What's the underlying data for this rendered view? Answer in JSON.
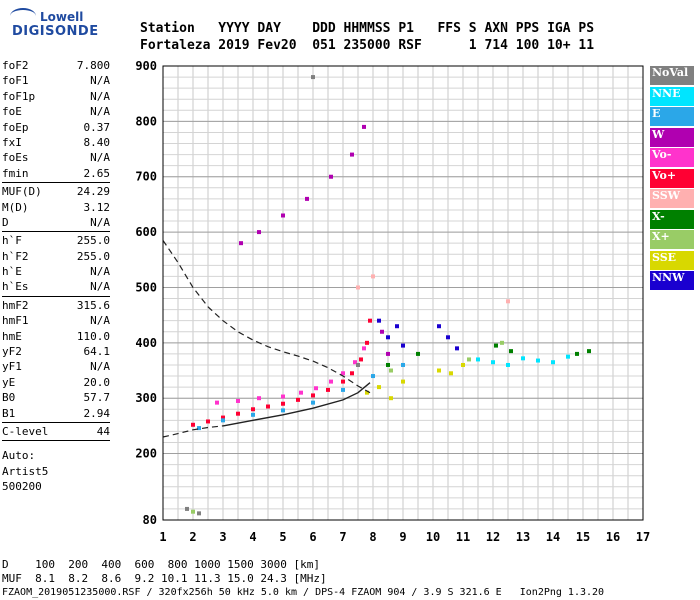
{
  "logo": {
    "line1": "Lowell",
    "line2": "DIGISONDE"
  },
  "header": {
    "row1": [
      "Station",
      "YYYY",
      "DAY",
      "DDD",
      "HHMMSS",
      "P1",
      "FFS",
      "S",
      "AXN",
      "PPS",
      "IGA",
      "PS"
    ],
    "row2": [
      "Fortaleza",
      "2019",
      "Fev20",
      "051",
      "235000",
      "RSF",
      "1",
      "714",
      "100",
      "10+",
      "11"
    ]
  },
  "params": {
    "group1": [
      {
        "label": "foF2",
        "value": "7.800"
      },
      {
        "label": "foF1",
        "value": "N/A"
      },
      {
        "label": "foF1p",
        "value": "N/A"
      },
      {
        "label": "foE",
        "value": "N/A"
      },
      {
        "label": "foEp",
        "value": "0.37"
      },
      {
        "label": "fxI",
        "value": "8.40"
      },
      {
        "label": "foEs",
        "value": "N/A"
      },
      {
        "label": "fmin",
        "value": "2.65"
      }
    ],
    "group2": [
      {
        "label": "MUF(D)",
        "value": "24.29"
      },
      {
        "label": "M(D)",
        "value": "3.12"
      },
      {
        "label": "D",
        "value": "N/A"
      }
    ],
    "group3": [
      {
        "label": "h`F",
        "value": "255.0"
      },
      {
        "label": "h`F2",
        "value": "255.0"
      },
      {
        "label": "h`E",
        "value": "N/A"
      },
      {
        "label": "h`Es",
        "value": "N/A"
      }
    ],
    "group4": [
      {
        "label": "hmF2",
        "value": "315.6"
      },
      {
        "label": "hmF1",
        "value": "N/A"
      },
      {
        "label": "hmE",
        "value": "110.0"
      },
      {
        "label": "yF2",
        "value": "64.1"
      },
      {
        "label": "yF1",
        "value": "N/A"
      },
      {
        "label": "yE",
        "value": "20.0"
      },
      {
        "label": "B0",
        "value": "57.7"
      },
      {
        "label": "B1",
        "value": "2.94"
      }
    ],
    "group5": [
      {
        "label": "C-level",
        "value": "44"
      }
    ],
    "auto": [
      "Auto:",
      "Artist5",
      "500200"
    ]
  },
  "legend": [
    {
      "label": "NoVal",
      "color": "#808080"
    },
    {
      "label": "NNE",
      "color": "#00e5ff"
    },
    {
      "label": "E",
      "color": "#2ba7e8"
    },
    {
      "label": "W",
      "color": "#b000b0"
    },
    {
      "label": "Vo-",
      "color": "#ff33cc"
    },
    {
      "label": "Vo+",
      "color": "#ff0033"
    },
    {
      "label": "SSW",
      "color": "#ffb0b0"
    },
    {
      "label": "X-",
      "color": "#008000"
    },
    {
      "label": "X+",
      "color": "#99cc66"
    },
    {
      "label": "SSE",
      "color": "#d8d800"
    },
    {
      "label": "NNW",
      "color": "#1a00d0"
    }
  ],
  "freq_table": {
    "d_label": "D",
    "d_values": [
      "100",
      "200",
      "400",
      "600",
      "800",
      "1000",
      "1500",
      "3000"
    ],
    "d_unit": "[km]",
    "muf_label": "MUF",
    "muf_values": [
      "8.1",
      "8.2",
      "8.6",
      "9.2",
      "10.1",
      "11.3",
      "15.0",
      "24.3"
    ],
    "muf_unit": "[MHz]"
  },
  "footer": "FZAOM_2019051235000.RSF / 320fx256h 50 kHz 5.0 km / DPS-4 FZAOM 904 / 3.9 S 321.6 E   Ion2Png 1.3.20",
  "chart_data": {
    "type": "scatter",
    "xlim": [
      1,
      17
    ],
    "ylim": [
      80,
      900
    ],
    "x_ticks": [
      1,
      2,
      3,
      4,
      5,
      6,
      7,
      8,
      9,
      10,
      11,
      12,
      13,
      14,
      15,
      16,
      17
    ],
    "y_ticks": [
      80,
      200,
      300,
      400,
      500,
      600,
      700,
      800,
      900
    ],
    "grid": true,
    "legend_position": "right",
    "series": [
      {
        "name": "Vo+",
        "color": "#ff0033",
        "points": [
          [
            2.0,
            252
          ],
          [
            2.5,
            258
          ],
          [
            3.0,
            265
          ],
          [
            3.5,
            272
          ],
          [
            4.0,
            280
          ],
          [
            4.5,
            285
          ],
          [
            5.0,
            290
          ],
          [
            5.5,
            297
          ],
          [
            6.0,
            305
          ],
          [
            6.5,
            315
          ],
          [
            7.0,
            330
          ],
          [
            7.3,
            345
          ],
          [
            7.6,
            370
          ],
          [
            7.8,
            400
          ],
          [
            7.9,
            440
          ]
        ]
      },
      {
        "name": "Vo-",
        "color": "#ff33cc",
        "points": [
          [
            2.8,
            292
          ],
          [
            3.5,
            295
          ],
          [
            4.2,
            300
          ],
          [
            5.0,
            303
          ],
          [
            5.6,
            310
          ],
          [
            6.1,
            318
          ],
          [
            6.6,
            330
          ],
          [
            7.0,
            345
          ],
          [
            7.4,
            365
          ],
          [
            7.7,
            390
          ]
        ]
      },
      {
        "name": "W",
        "color": "#b000b0",
        "points": [
          [
            3.6,
            580
          ],
          [
            4.2,
            600
          ],
          [
            5.0,
            630
          ],
          [
            5.8,
            660
          ],
          [
            6.6,
            700
          ],
          [
            7.3,
            740
          ],
          [
            7.7,
            790
          ],
          [
            8.3,
            420
          ],
          [
            8.5,
            380
          ]
        ]
      },
      {
        "name": "E",
        "color": "#2ba7e8",
        "points": [
          [
            2.2,
            246
          ],
          [
            3.0,
            260
          ],
          [
            4.0,
            270
          ],
          [
            5.0,
            278
          ],
          [
            6.0,
            292
          ],
          [
            7.0,
            315
          ],
          [
            8.0,
            340
          ],
          [
            9.0,
            360
          ]
        ]
      },
      {
        "name": "NNE",
        "color": "#00e5ff",
        "points": [
          [
            11.5,
            370
          ],
          [
            12.0,
            365
          ],
          [
            12.5,
            360
          ],
          [
            13.0,
            372
          ],
          [
            13.5,
            368
          ],
          [
            14.0,
            365
          ],
          [
            14.5,
            375
          ]
        ]
      },
      {
        "name": "NNW",
        "color": "#1a00d0",
        "points": [
          [
            8.2,
            440
          ],
          [
            8.5,
            410
          ],
          [
            8.8,
            430
          ],
          [
            9.0,
            395
          ],
          [
            10.2,
            430
          ],
          [
            10.5,
            410
          ],
          [
            10.8,
            390
          ]
        ]
      },
      {
        "name": "SSE",
        "color": "#d8d800",
        "points": [
          [
            7.8,
            310
          ],
          [
            8.2,
            320
          ],
          [
            8.6,
            300
          ],
          [
            9.0,
            330
          ],
          [
            10.2,
            350
          ],
          [
            10.6,
            345
          ],
          [
            11.0,
            360
          ]
        ]
      },
      {
        "name": "X-",
        "color": "#008000",
        "points": [
          [
            8.5,
            360
          ],
          [
            9.5,
            380
          ],
          [
            12.1,
            395
          ],
          [
            12.6,
            385
          ],
          [
            14.8,
            380
          ],
          [
            15.2,
            385
          ]
        ]
      },
      {
        "name": "X+",
        "color": "#99cc66",
        "points": [
          [
            2.0,
            95
          ],
          [
            8.6,
            350
          ],
          [
            11.2,
            370
          ],
          [
            12.3,
            400
          ]
        ]
      },
      {
        "name": "SSW",
        "color": "#ffb0b0",
        "points": [
          [
            7.5,
            500
          ],
          [
            8.0,
            520
          ],
          [
            12.5,
            475
          ]
        ]
      },
      {
        "name": "NoVal",
        "color": "#808080",
        "points": [
          [
            1.8,
            100
          ],
          [
            2.2,
            92
          ],
          [
            6.0,
            880
          ],
          [
            7.5,
            360
          ]
        ]
      }
    ],
    "profile_dashed": [
      [
        1,
        585
      ],
      [
        1.5,
        545
      ],
      [
        2,
        500
      ],
      [
        2.5,
        465
      ],
      [
        3,
        440
      ],
      [
        3.5,
        420
      ],
      [
        4,
        405
      ],
      [
        4.5,
        393
      ],
      [
        5,
        384
      ],
      [
        5.5,
        376
      ],
      [
        6,
        367
      ],
      [
        6.5,
        355
      ],
      [
        7,
        340
      ],
      [
        7.5,
        322
      ],
      [
        7.9,
        310
      ]
    ],
    "profile_x_dashed": [
      [
        1,
        230
      ],
      [
        1.5,
        236
      ],
      [
        2,
        243
      ],
      [
        2.5,
        247
      ],
      [
        3,
        250
      ]
    ],
    "profile_x_solid": [
      [
        3,
        250
      ],
      [
        4,
        260
      ],
      [
        5,
        270
      ],
      [
        6,
        282
      ],
      [
        7,
        297
      ],
      [
        7.5,
        310
      ],
      [
        7.9,
        328
      ]
    ]
  }
}
